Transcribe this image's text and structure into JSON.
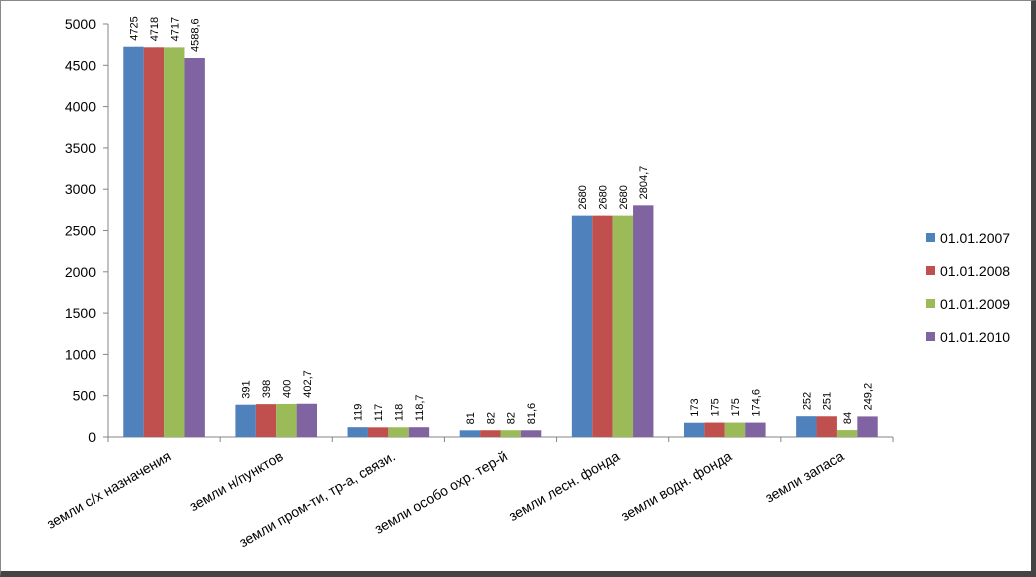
{
  "chart_data": {
    "type": "bar",
    "title": "",
    "xlabel": "",
    "ylabel": "",
    "ylim": [
      0,
      5000
    ],
    "ytick_step": 500,
    "yticks": [
      "0",
      "500",
      "1000",
      "1500",
      "2000",
      "2500",
      "3000",
      "3500",
      "4000",
      "4500",
      "5000"
    ],
    "grid": false,
    "legend_position": "right",
    "categories": [
      "земли с/х назначения",
      "земли н/пунктов",
      "земли пром-ти, тр-а, связи.",
      "земли особо охр. тер-й",
      "земли лесн. фонда",
      "земли водн. фонда",
      "земли запаса"
    ],
    "series": [
      {
        "name": "01.01.2007",
        "color": "#4F81BD",
        "values": [
          4725,
          391,
          119,
          81,
          2680,
          173,
          252
        ],
        "labels": [
          "4725",
          "391",
          "119",
          "81",
          "2680",
          "173",
          "252"
        ]
      },
      {
        "name": "01.01.2008",
        "color": "#C0504D",
        "values": [
          4718,
          398,
          117,
          82,
          2680,
          175,
          251
        ],
        "labels": [
          "4718",
          "398",
          "117",
          "82",
          "2680",
          "175",
          "251"
        ]
      },
      {
        "name": "01.01.2009",
        "color": "#9BBB59",
        "values": [
          4717,
          400,
          118,
          82,
          2680,
          175,
          84
        ],
        "labels": [
          "4717",
          "400",
          "118",
          "82",
          "2680",
          "175",
          "84"
        ]
      },
      {
        "name": "01.01.2010",
        "color": "#8064A2",
        "values": [
          4588.6,
          402.7,
          118.7,
          81.6,
          2804.7,
          174.6,
          249.2
        ],
        "labels": [
          "4588,6",
          "402,7",
          "118,7",
          "81,6",
          "2804,7",
          "174,6",
          "249,2"
        ]
      }
    ]
  }
}
